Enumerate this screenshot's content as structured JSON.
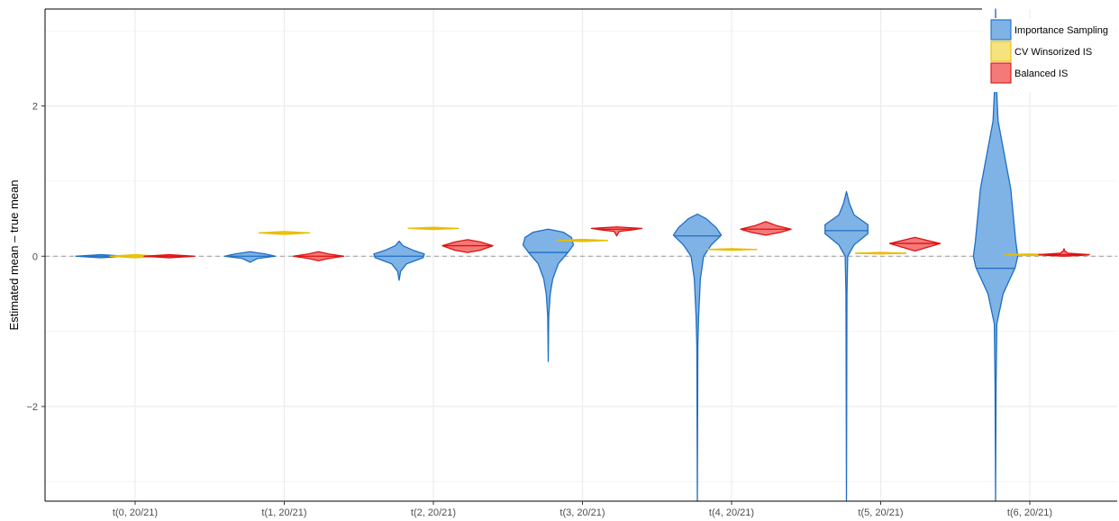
{
  "chart_data": {
    "type": "violin",
    "title": "",
    "xlabel": "",
    "ylabel": "Estimated mean – true mean",
    "ylim": [
      -3.26,
      3.29
    ],
    "yticks": [
      -2,
      0,
      2
    ],
    "ytick_labels": [
      "−2",
      "0",
      "2"
    ],
    "reference_line": 0,
    "grid": true,
    "legend_position": "top-right",
    "categories": [
      "t(0, 20/21)",
      "t(1, 20/21)",
      "t(2, 20/21)",
      "t(3, 20/21)",
      "t(4, 20/21)",
      "t(5, 20/21)",
      "t(6, 20/21)"
    ],
    "series": [
      {
        "name": "Importance Sampling",
        "fill": "#7fb2e5",
        "stroke": "#1f6fc4",
        "violins": [
          {
            "median": 0.0,
            "profile": [
              [
                -0.02,
                0.0
              ],
              [
                0.0,
                1.0
              ],
              [
                0.02,
                0.0
              ]
            ]
          },
          {
            "median": 0.0,
            "profile": [
              [
                -0.08,
                0.0
              ],
              [
                -0.03,
                0.3
              ],
              [
                0.0,
                1.0
              ],
              [
                0.03,
                0.6
              ],
              [
                0.06,
                0.0
              ]
            ]
          },
          {
            "median": 0.0,
            "profile": [
              [
                -0.32,
                0.0
              ],
              [
                -0.2,
                0.06
              ],
              [
                -0.1,
                0.3
              ],
              [
                -0.02,
                0.95
              ],
              [
                0.03,
                1.0
              ],
              [
                0.08,
                0.55
              ],
              [
                0.14,
                0.15
              ],
              [
                0.2,
                0.0
              ]
            ]
          },
          {
            "median": 0.05,
            "profile": [
              [
                -1.4,
                0.0
              ],
              [
                -0.8,
                0.02
              ],
              [
                -0.5,
                0.08
              ],
              [
                -0.3,
                0.18
              ],
              [
                -0.1,
                0.4
              ],
              [
                0.05,
                0.78
              ],
              [
                0.15,
                1.0
              ],
              [
                0.25,
                0.92
              ],
              [
                0.32,
                0.6
              ],
              [
                0.36,
                0.0
              ]
            ]
          },
          {
            "median": 0.27,
            "profile": [
              [
                -3.26,
                0.0
              ],
              [
                -1.2,
                0.02
              ],
              [
                -0.8,
                0.05
              ],
              [
                -0.3,
                0.12
              ],
              [
                0.0,
                0.25
              ],
              [
                0.15,
                0.55
              ],
              [
                0.28,
                0.95
              ],
              [
                0.38,
                0.75
              ],
              [
                0.5,
                0.35
              ],
              [
                0.56,
                0.0
              ]
            ]
          },
          {
            "median": 0.34,
            "profile": [
              [
                -3.26,
                0.0
              ],
              [
                -0.5,
                0.02
              ],
              [
                0.0,
                0.05
              ],
              [
                0.15,
                0.3
              ],
              [
                0.3,
                0.85
              ],
              [
                0.42,
                0.85
              ],
              [
                0.55,
                0.3
              ],
              [
                0.7,
                0.12
              ],
              [
                0.86,
                0.0
              ]
            ]
          },
          {
            "median": -0.16,
            "profile": [
              [
                -3.26,
                0.0
              ],
              [
                -1.7,
                0.02
              ],
              [
                -0.9,
                0.05
              ],
              [
                -0.5,
                0.3
              ],
              [
                -0.15,
                0.78
              ],
              [
                0.0,
                0.88
              ],
              [
                0.2,
                0.8
              ],
              [
                0.9,
                0.6
              ],
              [
                1.8,
                0.1
              ],
              [
                2.3,
                0.03
              ],
              [
                3.29,
                0.0
              ]
            ]
          }
        ]
      },
      {
        "name": "CV Winsorized IS",
        "fill": "#f6e27f",
        "stroke": "#e8bd00",
        "violins": [
          {
            "median": 0.0,
            "profile": [
              [
                -0.02,
                0.0
              ],
              [
                0.0,
                1.0
              ],
              [
                0.02,
                0.0
              ]
            ]
          },
          {
            "median": 0.31,
            "profile": [
              [
                0.29,
                0.0
              ],
              [
                0.31,
                1.0
              ],
              [
                0.33,
                0.0
              ]
            ]
          },
          {
            "median": 0.37,
            "profile": [
              [
                0.355,
                0.0
              ],
              [
                0.37,
                1.0
              ],
              [
                0.385,
                0.0
              ]
            ]
          },
          {
            "median": 0.21,
            "profile": [
              [
                0.195,
                0.0
              ],
              [
                0.21,
                1.0
              ],
              [
                0.225,
                0.0
              ]
            ]
          },
          {
            "median": 0.09,
            "profile": [
              [
                0.08,
                0.0
              ],
              [
                0.09,
                1.0
              ],
              [
                0.1,
                0.0
              ]
            ]
          },
          {
            "median": 0.04,
            "profile": [
              [
                0.03,
                0.0
              ],
              [
                0.04,
                1.0
              ],
              [
                0.05,
                0.0
              ]
            ]
          },
          {
            "median": 0.02,
            "profile": [
              [
                0.01,
                0.0
              ],
              [
                0.02,
                1.0
              ],
              [
                0.03,
                0.0
              ]
            ]
          }
        ]
      },
      {
        "name": "Balanced IS",
        "fill": "#f47a7a",
        "stroke": "#e01010",
        "violins": [
          {
            "median": 0.0,
            "profile": [
              [
                -0.02,
                0.0
              ],
              [
                0.0,
                1.0
              ],
              [
                0.02,
                0.0
              ]
            ]
          },
          {
            "median": 0.0,
            "profile": [
              [
                -0.06,
                0.0
              ],
              [
                -0.03,
                0.4
              ],
              [
                0.0,
                1.0
              ],
              [
                0.03,
                0.4
              ],
              [
                0.06,
                0.0
              ]
            ]
          },
          {
            "median": 0.14,
            "profile": [
              [
                0.05,
                0.0
              ],
              [
                0.08,
                0.5
              ],
              [
                0.14,
                1.0
              ],
              [
                0.19,
                0.5
              ],
              [
                0.22,
                0.0
              ]
            ]
          },
          {
            "median": 0.36,
            "profile": [
              [
                0.27,
                0.0
              ],
              [
                0.33,
                0.1
              ],
              [
                0.35,
                0.6
              ],
              [
                0.37,
                1.0
              ],
              [
                0.39,
                0.0
              ]
            ]
          },
          {
            "median": 0.36,
            "profile": [
              [
                0.28,
                0.0
              ],
              [
                0.32,
                0.6
              ],
              [
                0.36,
                1.0
              ],
              [
                0.41,
                0.4
              ],
              [
                0.46,
                0.0
              ]
            ]
          },
          {
            "median": 0.17,
            "profile": [
              [
                0.07,
                0.0
              ],
              [
                0.12,
                0.5
              ],
              [
                0.17,
                1.0
              ],
              [
                0.21,
                0.5
              ],
              [
                0.25,
                0.0
              ]
            ]
          },
          {
            "median": 0.02,
            "profile": [
              [
                0.0,
                0.0
              ],
              [
                0.01,
                0.6
              ],
              [
                0.02,
                1.0
              ],
              [
                0.04,
                0.15
              ],
              [
                0.07,
                0.03
              ],
              [
                0.1,
                0.0
              ]
            ]
          }
        ]
      }
    ]
  }
}
